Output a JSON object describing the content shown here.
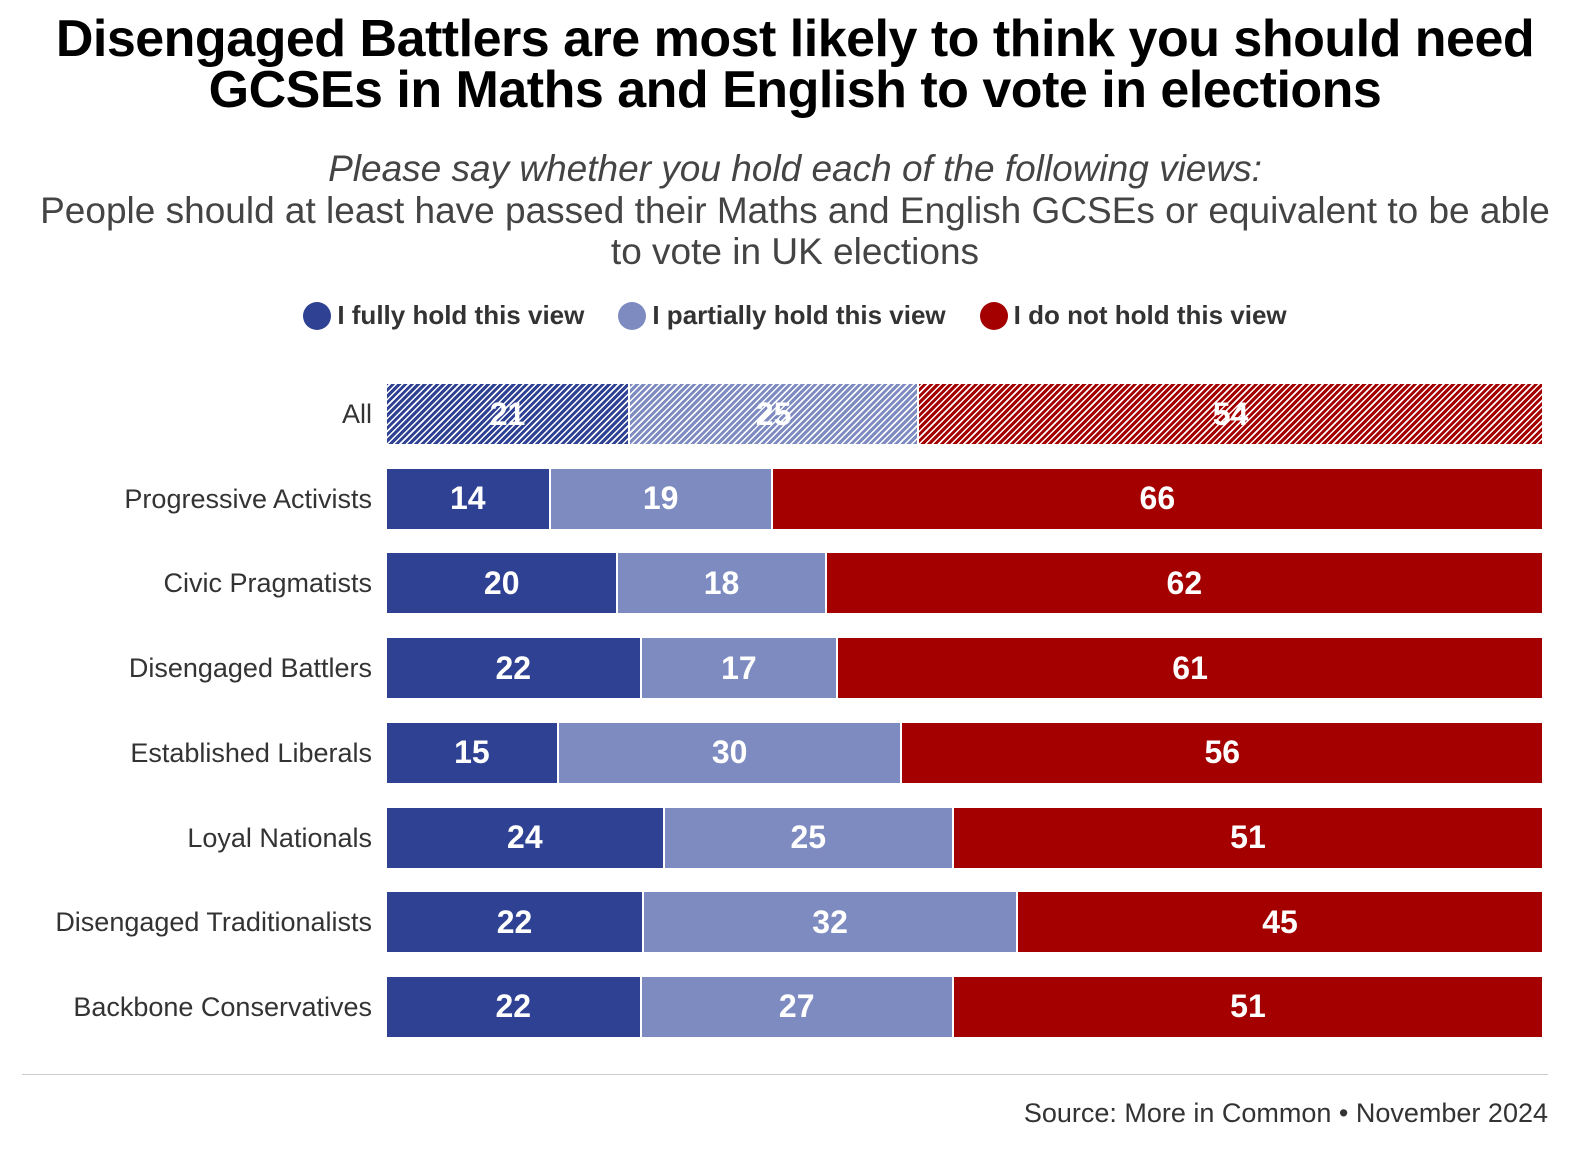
{
  "chart_data": {
    "type": "bar",
    "orientation": "horizontal-stacked",
    "title": "Disengaged Battlers are most likely to think you should need GCSEs in Maths and English to vote in elections",
    "subtitle_question": "Please say whether you hold each of the following views:",
    "subtitle_statement": "People should at least have passed their Maths and English GCSEs or equivalent to be able to vote in UK elections",
    "legend_placement": "top",
    "categories": [
      "All",
      "Progressive Activists",
      "Civic Pragmatists",
      "Disengaged Battlers",
      "Established Liberals",
      "Loyal Nationals",
      "Disengaged Traditionalists",
      "Backbone Conservatives"
    ],
    "series": [
      {
        "name": "I fully hold this view",
        "color": "#2F4193",
        "values": [
          21,
          14,
          20,
          22,
          15,
          24,
          22,
          22
        ]
      },
      {
        "name": "I partially hold this view",
        "color": "#7D8BC0",
        "values": [
          25,
          19,
          18,
          17,
          30,
          25,
          32,
          27
        ]
      },
      {
        "name": "I do not hold this view",
        "color": "#A50000",
        "values": [
          54,
          66,
          62,
          61,
          56,
          51,
          45,
          51
        ]
      }
    ],
    "hatched_categories": [
      "All"
    ],
    "xlim": [
      0,
      100
    ]
  },
  "source": "Source: More in Common • November 2024"
}
